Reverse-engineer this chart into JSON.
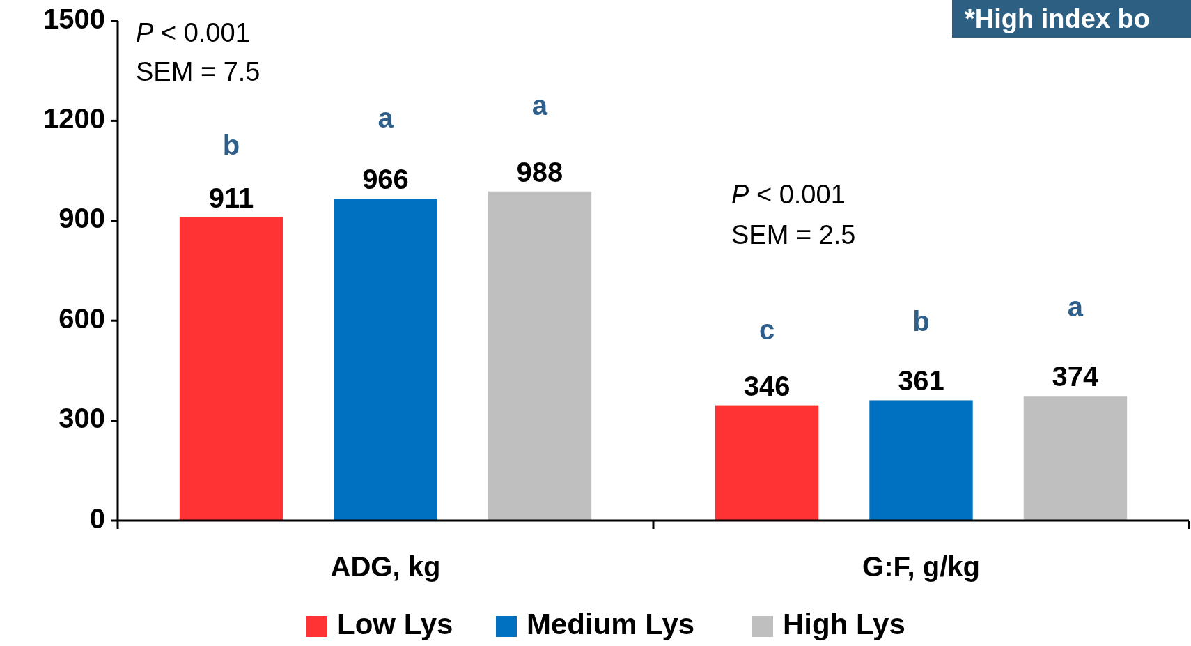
{
  "chart_data": {
    "type": "bar",
    "categories": [
      "ADG, kg",
      "G:F, g/kg"
    ],
    "series": [
      {
        "name": "Low Lys",
        "color": "#ff3333",
        "values": [
          911,
          346
        ]
      },
      {
        "name": "Medium Lys",
        "color": "#0070c0",
        "values": [
          966,
          361
        ]
      },
      {
        "name": "High Lys",
        "color": "#bfbfbf",
        "values": [
          988,
          374
        ]
      }
    ],
    "ylim": [
      0,
      1500
    ],
    "yticks": [
      0,
      300,
      600,
      900,
      1200,
      1500
    ],
    "data_labels": true,
    "legend": "bottom",
    "grid": false,
    "annotations": [
      "P < 0.001",
      "SEM = 7.5",
      "P < 0.001",
      "SEM = 2.5",
      "*High index bo",
      "b",
      "a",
      "a",
      "c",
      "b",
      "a"
    ]
  }
}
